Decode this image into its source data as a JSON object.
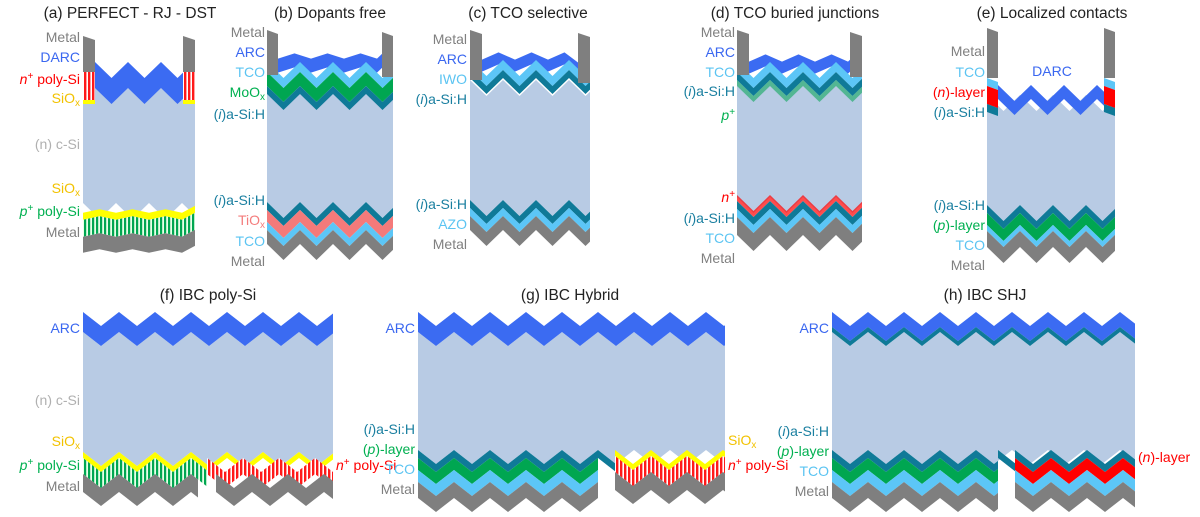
{
  "colors": {
    "metal": "#7f7f7f",
    "arc": "#3b6bf2",
    "tco": "#5cc6f7",
    "asi": "#0f7a98",
    "moox": "#00a651",
    "tiox": "#f47a7a",
    "siox": "#ffff00",
    "npoly": "#ff1a1a",
    "ppoly": "#00a651",
    "nlayer": "#ff0000",
    "player": "#00a651",
    "csi": "#b8cbe4",
    "label_metal": "#808080",
    "label_arc": "#3a67f0",
    "label_tco": "#5bc4f2",
    "label_asi": "#1a7fa0",
    "label_red": "#ff0000",
    "label_siox": "#f2c200",
    "label_green": "#00b050",
    "label_csi": "#b0b0b0",
    "label_tiox": "#f47c7c"
  },
  "panels": {
    "a": {
      "title": "(a) PERFECT - RJ - DST",
      "labels": [
        "Metal",
        "DARC",
        "n+ poly-Si",
        "SiOx",
        "(n) c-Si",
        "SiOx",
        "p+ poly-Si",
        "Metal"
      ]
    },
    "b": {
      "title": "(b) Dopants free",
      "labels": [
        "Metal",
        "ARC",
        "TCO",
        "MoOx",
        "(i)a-Si:H",
        "(i)a-Si:H",
        "TiOx",
        "TCO",
        "Metal"
      ]
    },
    "c": {
      "title": "(c) TCO selective",
      "labels": [
        "Metal",
        "ARC",
        "IWO",
        "(i)a-Si:H",
        "(i)a-Si:H",
        "AZO",
        "Metal"
      ]
    },
    "d": {
      "title": "(d) TCO buried junctions",
      "labels": [
        "Metal",
        "ARC",
        "TCO",
        "(i)a-Si:H",
        "p+",
        "n+",
        "(i)a-Si:H",
        "TCO",
        "Metal"
      ]
    },
    "e": {
      "title": "(e) Localized contacts",
      "labels": [
        "Metal",
        "TCO",
        "(n)-layer",
        "(i)a-Si:H",
        "DARC",
        "(i)a-Si:H",
        "(p)-layer",
        "TCO",
        "Metal"
      ]
    },
    "f": {
      "title": "(f) IBC poly-Si",
      "labels": [
        "ARC",
        "(n) c-Si",
        "SiOx",
        "p+ poly-Si",
        "Metal",
        "n+ poly-Si"
      ]
    },
    "g": {
      "title": "(g) IBC Hybrid",
      "labels": [
        "ARC",
        "(i)a-Si:H",
        "(p)-layer",
        "TCO",
        "Metal",
        "SiOx",
        "n+ poly-Si"
      ]
    },
    "h": {
      "title": "(h) IBC SHJ",
      "labels": [
        "ARC",
        "(i)a-Si:H",
        "(p)-layer",
        "TCO",
        "Metal",
        "(n)-layer"
      ]
    }
  }
}
